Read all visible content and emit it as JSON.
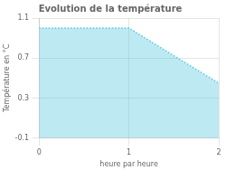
{
  "chart_data": {
    "type": "area",
    "title": "Evolution de la température",
    "xlabel": "heure par heure",
    "ylabel": "Température en °C",
    "x": [
      0,
      1,
      2
    ],
    "values": [
      1.0,
      1.0,
      0.45
    ],
    "color": "#5bc8e0",
    "line_style": "dotted",
    "xlim": [
      0,
      2
    ],
    "ylim": [
      -0.1,
      1.1
    ],
    "xticks": [
      0,
      1,
      2
    ],
    "yticks": [
      -0.1,
      0.3,
      0.7,
      1.1
    ],
    "grid": true
  }
}
